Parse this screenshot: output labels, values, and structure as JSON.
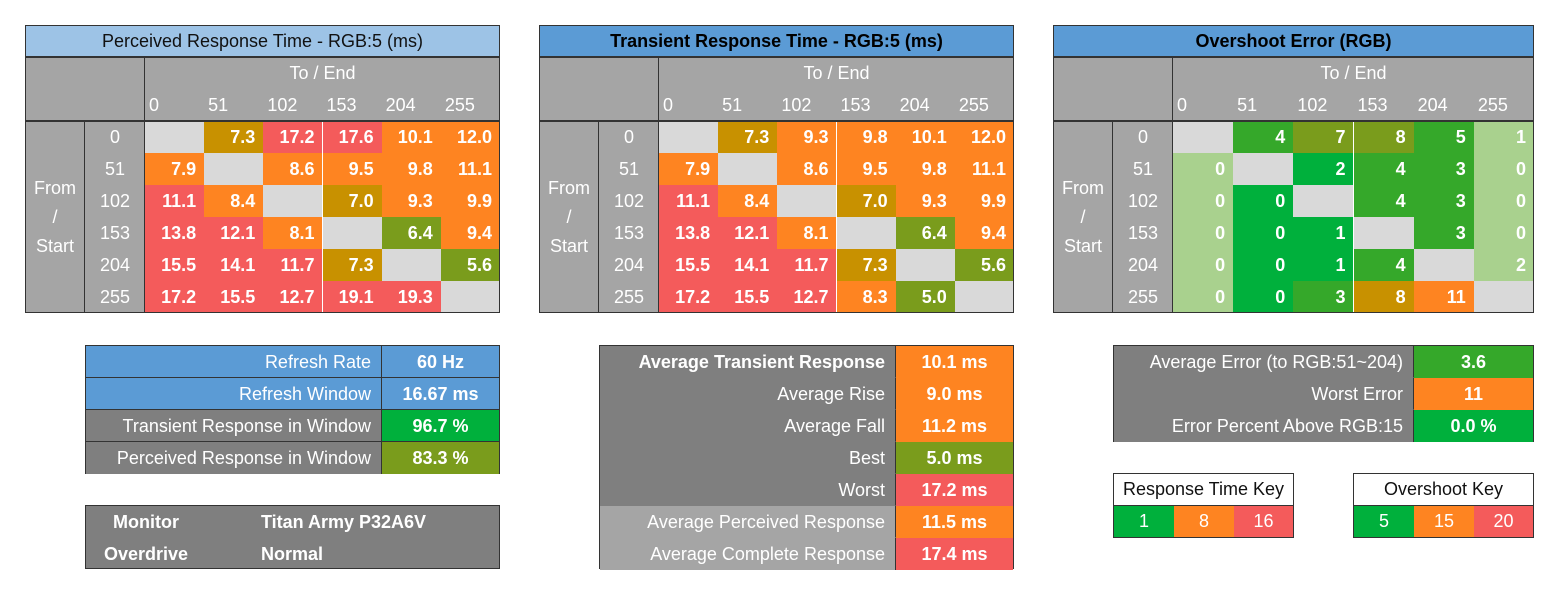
{
  "colors": {
    "grey_bg": "#a5a5a5",
    "dark_grey": "#7f7f7f",
    "diag": "#d9d9d9",
    "blue_light": "#9dc3e6",
    "blue": "#5b9bd5",
    "red": "#f45b5b",
    "orange": "#fe8421",
    "mustard": "#c89100",
    "olive": "#7a9c1c",
    "green": "#00b03c",
    "green_mid": "#35a82a",
    "green_light": "#a9d18e"
  },
  "chart_data": [
    {
      "type": "heatmap",
      "title": "Perceived Response Time - RGB:5 (ms)",
      "xlabel": "To / End",
      "ylabel": "From / Start",
      "ylabel_parts": [
        "From",
        "/",
        "Start"
      ],
      "x": [
        "0",
        "51",
        "102",
        "153",
        "204",
        "255"
      ],
      "y": [
        "0",
        "51",
        "102",
        "153",
        "204",
        "255"
      ],
      "values": [
        [
          null,
          7.3,
          17.2,
          17.6,
          10.1,
          12.0
        ],
        [
          7.9,
          null,
          8.6,
          9.5,
          9.8,
          11.1
        ],
        [
          11.1,
          8.4,
          null,
          7.0,
          9.3,
          9.9
        ],
        [
          13.8,
          12.1,
          8.1,
          null,
          6.4,
          9.4
        ],
        [
          15.5,
          14.1,
          11.7,
          7.3,
          null,
          5.6
        ],
        [
          17.2,
          15.5,
          12.7,
          19.1,
          19.3,
          null
        ]
      ],
      "labels": [
        [
          "",
          "7.3",
          "17.2",
          "17.6",
          "10.1",
          "12.0"
        ],
        [
          "7.9",
          "",
          "8.6",
          "9.5",
          "9.8",
          "11.1"
        ],
        [
          "11.1",
          "8.4",
          "",
          "7.0",
          "9.3",
          "9.9"
        ],
        [
          "13.8",
          "12.1",
          "8.1",
          "",
          "6.4",
          "9.4"
        ],
        [
          "15.5",
          "14.1",
          "11.7",
          "7.3",
          "",
          "5.6"
        ],
        [
          "17.2",
          "15.5",
          "12.7",
          "19.1",
          "19.3",
          ""
        ]
      ],
      "colors": [
        [
          "diag",
          "mustard",
          "red",
          "red",
          "orange",
          "orange"
        ],
        [
          "orange",
          "diag",
          "orange",
          "orange",
          "orange",
          "orange"
        ],
        [
          "red",
          "orange",
          "diag",
          "mustard",
          "orange",
          "orange"
        ],
        [
          "red",
          "red",
          "orange",
          "diag",
          "olive",
          "orange"
        ],
        [
          "red",
          "red",
          "red",
          "mustard",
          "diag",
          "olive"
        ],
        [
          "red",
          "red",
          "red",
          "red",
          "red",
          "diag"
        ]
      ],
      "title_bg": "blue_light",
      "title_bold": false
    },
    {
      "type": "heatmap",
      "title": "Transient Response Time - RGB:5 (ms)",
      "xlabel": "To / End",
      "ylabel": "From / Start",
      "ylabel_parts": [
        "From",
        "/",
        "Start"
      ],
      "x": [
        "0",
        "51",
        "102",
        "153",
        "204",
        "255"
      ],
      "y": [
        "0",
        "51",
        "102",
        "153",
        "204",
        "255"
      ],
      "values": [
        [
          null,
          7.3,
          9.3,
          9.8,
          10.1,
          12.0
        ],
        [
          7.9,
          null,
          8.6,
          9.5,
          9.8,
          11.1
        ],
        [
          11.1,
          8.4,
          null,
          7.0,
          9.3,
          9.9
        ],
        [
          13.8,
          12.1,
          8.1,
          null,
          6.4,
          9.4
        ],
        [
          15.5,
          14.1,
          11.7,
          7.3,
          null,
          5.6
        ],
        [
          17.2,
          15.5,
          12.7,
          8.3,
          5.0,
          null
        ]
      ],
      "labels": [
        [
          "",
          "7.3",
          "9.3",
          "9.8",
          "10.1",
          "12.0"
        ],
        [
          "7.9",
          "",
          "8.6",
          "9.5",
          "9.8",
          "11.1"
        ],
        [
          "11.1",
          "8.4",
          "",
          "7.0",
          "9.3",
          "9.9"
        ],
        [
          "13.8",
          "12.1",
          "8.1",
          "",
          "6.4",
          "9.4"
        ],
        [
          "15.5",
          "14.1",
          "11.7",
          "7.3",
          "",
          "5.6"
        ],
        [
          "17.2",
          "15.5",
          "12.7",
          "8.3",
          "5.0",
          ""
        ]
      ],
      "colors": [
        [
          "diag",
          "mustard",
          "orange",
          "orange",
          "orange",
          "orange"
        ],
        [
          "orange",
          "diag",
          "orange",
          "orange",
          "orange",
          "orange"
        ],
        [
          "red",
          "orange",
          "diag",
          "mustard",
          "orange",
          "orange"
        ],
        [
          "red",
          "red",
          "orange",
          "diag",
          "olive",
          "orange"
        ],
        [
          "red",
          "red",
          "red",
          "mustard",
          "diag",
          "olive"
        ],
        [
          "red",
          "red",
          "red",
          "orange",
          "olive",
          "diag"
        ]
      ],
      "title_bg": "blue",
      "title_bold": true
    },
    {
      "type": "heatmap",
      "title": "Overshoot Error (RGB)",
      "xlabel": "To / End",
      "ylabel": "From / Start",
      "ylabel_parts": [
        "From",
        "/",
        "Start"
      ],
      "x": [
        "0",
        "51",
        "102",
        "153",
        "204",
        "255"
      ],
      "y": [
        "0",
        "51",
        "102",
        "153",
        "204",
        "255"
      ],
      "values": [
        [
          null,
          4,
          7,
          8,
          5,
          1
        ],
        [
          0,
          null,
          2,
          4,
          3,
          0
        ],
        [
          0,
          0,
          null,
          4,
          3,
          0
        ],
        [
          0,
          0,
          1,
          null,
          3,
          0
        ],
        [
          0,
          0,
          1,
          4,
          null,
          2
        ],
        [
          0,
          0,
          3,
          8,
          11,
          null
        ]
      ],
      "labels": [
        [
          "",
          "4",
          "7",
          "8",
          "5",
          "1"
        ],
        [
          "0",
          "",
          "2",
          "4",
          "3",
          "0"
        ],
        [
          "0",
          "0",
          "",
          "4",
          "3",
          "0"
        ],
        [
          "0",
          "0",
          "1",
          "",
          "3",
          "0"
        ],
        [
          "0",
          "0",
          "1",
          "4",
          "",
          "2"
        ],
        [
          "0",
          "0",
          "3",
          "8",
          "11",
          ""
        ]
      ],
      "colors": [
        [
          "diag",
          "green_mid",
          "olive",
          "olive",
          "green_mid",
          "green_light"
        ],
        [
          "green_light",
          "diag",
          "green",
          "green_mid",
          "green_mid",
          "green_light"
        ],
        [
          "green_light",
          "green",
          "diag",
          "green_mid",
          "green_mid",
          "green_light"
        ],
        [
          "green_light",
          "green",
          "green",
          "diag",
          "green_mid",
          "green_light"
        ],
        [
          "green_light",
          "green",
          "green",
          "green_mid",
          "diag",
          "green_light"
        ],
        [
          "green_light",
          "green",
          "green_mid",
          "mustard",
          "orange",
          "diag"
        ]
      ],
      "title_bg": "blue",
      "title_bold": true
    }
  ],
  "refresh_table": {
    "rows": [
      {
        "label": "Refresh Rate",
        "value": "60 Hz",
        "label_bg": "blue",
        "value_bg": "blue"
      },
      {
        "label": "Refresh Window",
        "value": "16.67 ms",
        "label_bg": "blue",
        "value_bg": "blue"
      },
      {
        "label": "Transient Response in Window",
        "value": "96.7 %",
        "label_bg": "dark_grey",
        "value_bg": "green"
      },
      {
        "label": "Perceived Response in Window",
        "value": "83.3 %",
        "label_bg": "dark_grey",
        "value_bg": "olive"
      }
    ]
  },
  "monitor_table": {
    "rows": [
      {
        "label": "Monitor",
        "value": "Titan Army P32A6V"
      },
      {
        "label": "Overdrive",
        "value": "Normal"
      }
    ]
  },
  "averages_table": {
    "rows": [
      {
        "label": "Average Transient Response",
        "value": "10.1 ms",
        "bold": true,
        "label_bg": "dark_grey",
        "value_bg": "orange"
      },
      {
        "label": "Average Rise",
        "value": "9.0 ms",
        "bold": false,
        "label_bg": "dark_grey",
        "value_bg": "orange"
      },
      {
        "label": "Average Fall",
        "value": "11.2 ms",
        "bold": false,
        "label_bg": "dark_grey",
        "value_bg": "orange"
      },
      {
        "label": "Best",
        "value": "5.0 ms",
        "bold": false,
        "label_bg": "dark_grey",
        "value_bg": "olive"
      },
      {
        "label": "Worst",
        "value": "17.2 ms",
        "bold": false,
        "label_bg": "dark_grey",
        "value_bg": "red"
      },
      {
        "label": "Average Perceived Response",
        "value": "11.5 ms",
        "bold": false,
        "label_bg": "grey_bg",
        "value_bg": "orange"
      },
      {
        "label": "Average Complete Response",
        "value": "17.4 ms",
        "bold": false,
        "label_bg": "grey_bg",
        "value_bg": "red"
      }
    ]
  },
  "error_table": {
    "rows": [
      {
        "label": "Average Error (to RGB:51~204)",
        "value": "3.6",
        "value_bg": "green_mid"
      },
      {
        "label": "Worst Error",
        "value": "11",
        "value_bg": "orange"
      },
      {
        "label": "Error Percent Above RGB:15",
        "value": "0.0 %",
        "value_bg": "green"
      }
    ]
  },
  "response_key": {
    "title": "Response Time Key",
    "items": [
      {
        "label": "1",
        "color": "green"
      },
      {
        "label": "8",
        "color": "orange"
      },
      {
        "label": "16",
        "color": "red"
      }
    ]
  },
  "overshoot_key": {
    "title": "Overshoot Key",
    "items": [
      {
        "label": "5",
        "color": "green"
      },
      {
        "label": "15",
        "color": "orange"
      },
      {
        "label": "20",
        "color": "red"
      }
    ]
  }
}
